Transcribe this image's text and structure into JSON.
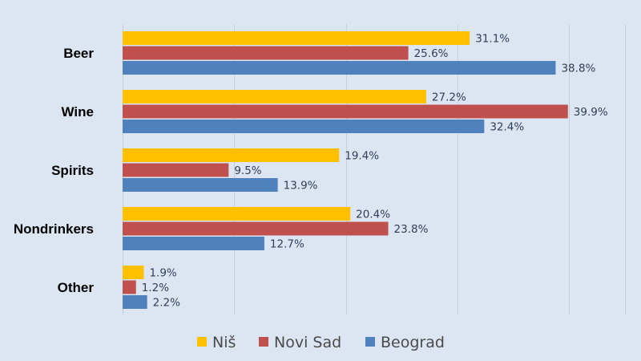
{
  "chart_data": {
    "type": "bar",
    "orientation": "horizontal",
    "categories": [
      "Beer",
      "Wine",
      "Spirits",
      "Nondrinkers",
      "Other"
    ],
    "series": [
      {
        "name": "Niš",
        "values": [
          31.1,
          27.2,
          19.4,
          20.4,
          1.9
        ],
        "color": "#ffc000"
      },
      {
        "name": "Novi Sad",
        "values": [
          25.6,
          39.9,
          9.5,
          23.8,
          1.2
        ],
        "color": "#c0504d"
      },
      {
        "name": "Beograd",
        "values": [
          38.8,
          32.4,
          13.9,
          12.7,
          2.2
        ],
        "color": "#4f81bd"
      }
    ],
    "value_suffix": "%",
    "xlim": [
      0,
      45
    ],
    "grid": true,
    "legend_position": "bottom"
  }
}
